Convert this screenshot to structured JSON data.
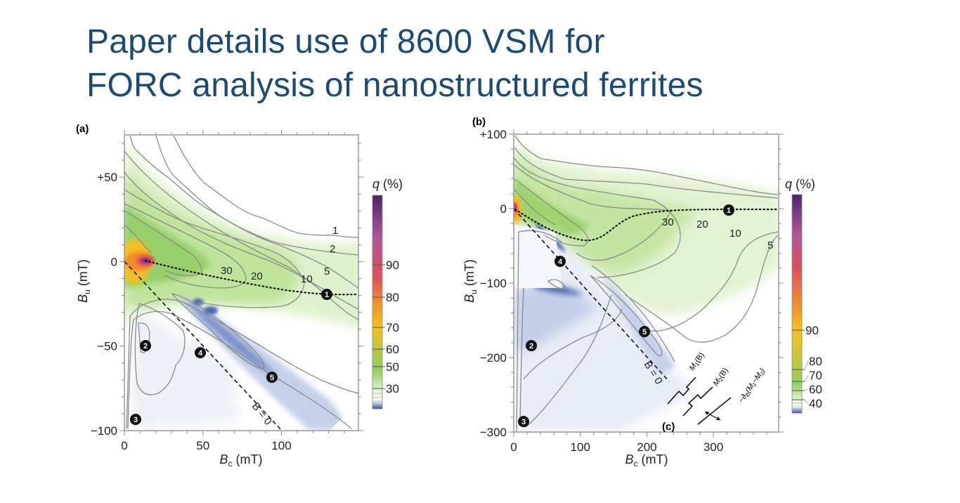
{
  "title": {
    "line1": "Paper details use of 8600 VSM for",
    "line2": "FORC analysis of nanostructured ferrites"
  },
  "colors": {
    "title": "#1d4a72",
    "dotted_line": "#111111",
    "contour": "#8a8a8a"
  },
  "chart_data": [
    {
      "type": "heatmap",
      "panel_label": "(a)",
      "xlabel": {
        "main": "B",
        "sub": "c",
        "unit": " (mT)"
      },
      "ylabel": {
        "main": "B",
        "sub": "u",
        "unit": " (mT)"
      },
      "xlim": [
        0,
        149
      ],
      "ylim": [
        -100,
        75
      ],
      "xticks": [
        0,
        50,
        100
      ],
      "xtick_labels": [
        "0",
        "50",
        "100"
      ],
      "yticks": [
        -100,
        -50,
        0,
        50
      ],
      "ytick_labels": [
        "−100",
        "−50",
        "0",
        "+50"
      ],
      "colorbar": {
        "label_main": "q",
        "label_unit": " (%)",
        "ticks": [
          "90",
          "80",
          "70",
          "60",
          "50",
          "30"
        ]
      },
      "contour_labels": [
        "1",
        "2",
        "5",
        "30",
        "20",
        "10"
      ],
      "markers": [
        "1",
        "2",
        "3",
        "4",
        "5"
      ],
      "line_label": "B = 0",
      "grid": false
    },
    {
      "type": "heatmap",
      "panel_label": "(b)",
      "xlabel": {
        "main": "B",
        "sub": "c",
        "unit": " (mT)"
      },
      "ylabel": {
        "main": "B",
        "sub": "u",
        "unit": " (mT)"
      },
      "xlim": [
        0,
        398
      ],
      "ylim": [
        -300,
        100
      ],
      "xticks": [
        0,
        100,
        200,
        300
      ],
      "xtick_labels": [
        "0",
        "100",
        "200",
        "300"
      ],
      "yticks": [
        -300,
        -200,
        -100,
        0,
        100
      ],
      "ytick_labels": [
        "−300",
        "−200",
        "−100",
        "0",
        "+100"
      ],
      "colorbar": {
        "label_main": "q",
        "label_unit": " (%)",
        "ticks": [
          "90",
          "80",
          "70",
          "60",
          "40"
        ]
      },
      "contour_labels": [
        "30",
        "20",
        "10",
        "5"
      ],
      "markers": [
        "1",
        "2",
        "3",
        "4",
        "5"
      ],
      "line_label": "B = 0",
      "grid": false,
      "inset": {
        "label": "(c)",
        "m1": {
          "main": "M",
          "sub": "1",
          "rest": "(B)"
        },
        "m2": {
          "main": "M",
          "sub": "2",
          "rest": "(B)"
        },
        "diff": {
          "main": "−∂",
          "sub": "B",
          "rest": "(M₁−M₂)"
        }
      }
    }
  ]
}
